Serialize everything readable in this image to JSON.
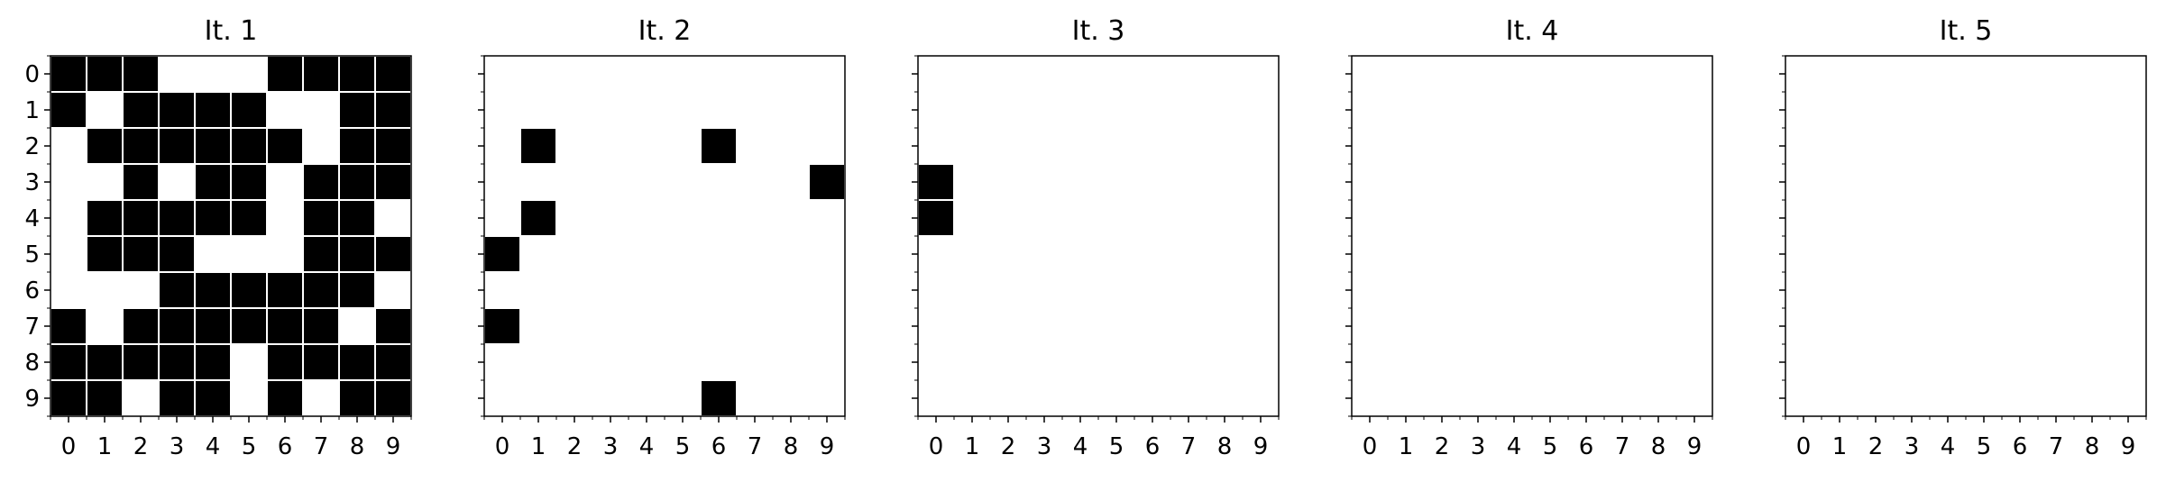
{
  "chart_data": [
    {
      "type": "heatmap",
      "title": "It. 1",
      "x_ticks": [
        "0",
        "1",
        "2",
        "3",
        "4",
        "5",
        "6",
        "7",
        "8",
        "9"
      ],
      "y_ticks": [
        "0",
        "1",
        "2",
        "3",
        "4",
        "5",
        "6",
        "7",
        "8",
        "9"
      ],
      "show_y_tick_labels": true,
      "value_colors": {
        "0": "#ffffff",
        "1": "#000000"
      },
      "grid": [
        [
          1,
          1,
          1,
          0,
          0,
          0,
          1,
          1,
          1,
          1
        ],
        [
          1,
          0,
          1,
          1,
          1,
          1,
          0,
          0,
          1,
          1
        ],
        [
          0,
          1,
          1,
          1,
          1,
          1,
          1,
          0,
          1,
          1
        ],
        [
          0,
          0,
          1,
          0,
          1,
          1,
          0,
          1,
          1,
          1
        ],
        [
          0,
          1,
          1,
          1,
          1,
          1,
          0,
          1,
          1,
          0
        ],
        [
          0,
          1,
          1,
          1,
          0,
          0,
          0,
          1,
          1,
          1
        ],
        [
          0,
          0,
          0,
          1,
          1,
          1,
          1,
          1,
          1,
          0
        ],
        [
          1,
          0,
          1,
          1,
          1,
          1,
          1,
          1,
          0,
          1
        ],
        [
          1,
          1,
          1,
          1,
          1,
          0,
          1,
          1,
          1,
          1
        ],
        [
          1,
          1,
          0,
          1,
          1,
          0,
          1,
          0,
          1,
          1
        ]
      ]
    },
    {
      "type": "heatmap",
      "title": "It. 2",
      "x_ticks": [
        "0",
        "1",
        "2",
        "3",
        "4",
        "5",
        "6",
        "7",
        "8",
        "9"
      ],
      "y_ticks": [
        "0",
        "1",
        "2",
        "3",
        "4",
        "5",
        "6",
        "7",
        "8",
        "9"
      ],
      "show_y_tick_labels": false,
      "value_colors": {
        "0": "#ffffff",
        "1": "#000000"
      },
      "grid": [
        [
          0,
          0,
          0,
          0,
          0,
          0,
          0,
          0,
          0,
          0
        ],
        [
          0,
          0,
          0,
          0,
          0,
          0,
          0,
          0,
          0,
          0
        ],
        [
          0,
          1,
          0,
          0,
          0,
          0,
          1,
          0,
          0,
          0
        ],
        [
          0,
          0,
          0,
          0,
          0,
          0,
          0,
          0,
          0,
          1
        ],
        [
          0,
          1,
          0,
          0,
          0,
          0,
          0,
          0,
          0,
          0
        ],
        [
          1,
          0,
          0,
          0,
          0,
          0,
          0,
          0,
          0,
          0
        ],
        [
          0,
          0,
          0,
          0,
          0,
          0,
          0,
          0,
          0,
          0
        ],
        [
          1,
          0,
          0,
          0,
          0,
          0,
          0,
          0,
          0,
          0
        ],
        [
          0,
          0,
          0,
          0,
          0,
          0,
          0,
          0,
          0,
          0
        ],
        [
          0,
          0,
          0,
          0,
          0,
          0,
          1,
          0,
          0,
          0
        ]
      ]
    },
    {
      "type": "heatmap",
      "title": "It. 3",
      "x_ticks": [
        "0",
        "1",
        "2",
        "3",
        "4",
        "5",
        "6",
        "7",
        "8",
        "9"
      ],
      "y_ticks": [
        "0",
        "1",
        "2",
        "3",
        "4",
        "5",
        "6",
        "7",
        "8",
        "9"
      ],
      "show_y_tick_labels": false,
      "value_colors": {
        "0": "#ffffff",
        "1": "#000000"
      },
      "grid": [
        [
          0,
          0,
          0,
          0,
          0,
          0,
          0,
          0,
          0,
          0
        ],
        [
          0,
          0,
          0,
          0,
          0,
          0,
          0,
          0,
          0,
          0
        ],
        [
          0,
          0,
          0,
          0,
          0,
          0,
          0,
          0,
          0,
          0
        ],
        [
          1,
          0,
          0,
          0,
          0,
          0,
          0,
          0,
          0,
          0
        ],
        [
          1,
          0,
          0,
          0,
          0,
          0,
          0,
          0,
          0,
          0
        ],
        [
          0,
          0,
          0,
          0,
          0,
          0,
          0,
          0,
          0,
          0
        ],
        [
          0,
          0,
          0,
          0,
          0,
          0,
          0,
          0,
          0,
          0
        ],
        [
          0,
          0,
          0,
          0,
          0,
          0,
          0,
          0,
          0,
          0
        ],
        [
          0,
          0,
          0,
          0,
          0,
          0,
          0,
          0,
          0,
          0
        ],
        [
          0,
          0,
          0,
          0,
          0,
          0,
          0,
          0,
          0,
          0
        ]
      ]
    },
    {
      "type": "heatmap",
      "title": "It. 4",
      "x_ticks": [
        "0",
        "1",
        "2",
        "3",
        "4",
        "5",
        "6",
        "7",
        "8",
        "9"
      ],
      "y_ticks": [
        "0",
        "1",
        "2",
        "3",
        "4",
        "5",
        "6",
        "7",
        "8",
        "9"
      ],
      "show_y_tick_labels": false,
      "value_colors": {
        "0": "#ffffff",
        "1": "#000000"
      },
      "grid": [
        [
          0,
          0,
          0,
          0,
          0,
          0,
          0,
          0,
          0,
          0
        ],
        [
          0,
          0,
          0,
          0,
          0,
          0,
          0,
          0,
          0,
          0
        ],
        [
          0,
          0,
          0,
          0,
          0,
          0,
          0,
          0,
          0,
          0
        ],
        [
          0,
          0,
          0,
          0,
          0,
          0,
          0,
          0,
          0,
          0
        ],
        [
          0,
          0,
          0,
          0,
          0,
          0,
          0,
          0,
          0,
          0
        ],
        [
          0,
          0,
          0,
          0,
          0,
          0,
          0,
          0,
          0,
          0
        ],
        [
          0,
          0,
          0,
          0,
          0,
          0,
          0,
          0,
          0,
          0
        ],
        [
          0,
          0,
          0,
          0,
          0,
          0,
          0,
          0,
          0,
          0
        ],
        [
          0,
          0,
          0,
          0,
          0,
          0,
          0,
          0,
          0,
          0
        ],
        [
          0,
          0,
          0,
          0,
          0,
          0,
          0,
          0,
          0,
          0
        ]
      ]
    },
    {
      "type": "heatmap",
      "title": "It. 5",
      "x_ticks": [
        "0",
        "1",
        "2",
        "3",
        "4",
        "5",
        "6",
        "7",
        "8",
        "9"
      ],
      "y_ticks": [
        "0",
        "1",
        "2",
        "3",
        "4",
        "5",
        "6",
        "7",
        "8",
        "9"
      ],
      "show_y_tick_labels": false,
      "value_colors": {
        "0": "#ffffff",
        "1": "#000000"
      },
      "grid": [
        [
          0,
          0,
          0,
          0,
          0,
          0,
          0,
          0,
          0,
          0
        ],
        [
          0,
          0,
          0,
          0,
          0,
          0,
          0,
          0,
          0,
          0
        ],
        [
          0,
          0,
          0,
          0,
          0,
          0,
          0,
          0,
          0,
          0
        ],
        [
          0,
          0,
          0,
          0,
          0,
          0,
          0,
          0,
          0,
          0
        ],
        [
          0,
          0,
          0,
          0,
          0,
          0,
          0,
          0,
          0,
          0
        ],
        [
          0,
          0,
          0,
          0,
          0,
          0,
          0,
          0,
          0,
          0
        ],
        [
          0,
          0,
          0,
          0,
          0,
          0,
          0,
          0,
          0,
          0
        ],
        [
          0,
          0,
          0,
          0,
          0,
          0,
          0,
          0,
          0,
          0
        ],
        [
          0,
          0,
          0,
          0,
          0,
          0,
          0,
          0,
          0,
          0
        ],
        [
          0,
          0,
          0,
          0,
          0,
          0,
          0,
          0,
          0,
          0
        ]
      ]
    }
  ]
}
